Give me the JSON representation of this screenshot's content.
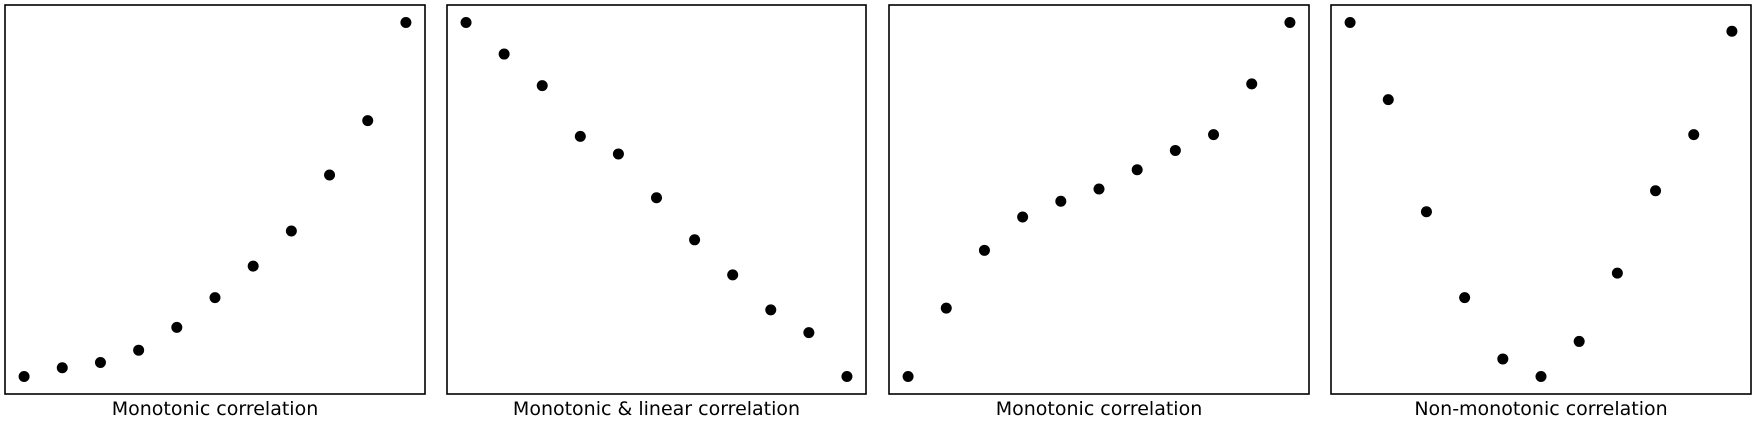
{
  "chart_data": [
    {
      "type": "scatter",
      "title": "",
      "xlabel": "Monotonic correlation",
      "ylabel": "",
      "x": [
        1,
        2,
        3,
        4,
        5,
        6,
        7,
        8,
        9,
        10,
        11
      ],
      "y": [
        0,
        2.5,
        4,
        7.5,
        14,
        22.5,
        31.5,
        41.5,
        57.5,
        73,
        101
      ],
      "xlim": [
        0.5,
        11.5
      ],
      "ylim": [
        -5,
        106
      ],
      "grid": false,
      "marker_color": "#000000"
    },
    {
      "type": "scatter",
      "title": "",
      "xlabel": "Monotonic & linear correlation",
      "ylabel": "",
      "x": [
        1,
        2,
        3,
        4,
        5,
        6,
        7,
        8,
        9,
        10,
        11
      ],
      "y": [
        101,
        92,
        83,
        68.5,
        63.5,
        51,
        39,
        29,
        19,
        12.5,
        0
      ],
      "xlim": [
        0.5,
        11.5
      ],
      "ylim": [
        -5,
        106
      ],
      "grid": false,
      "marker_color": "#000000"
    },
    {
      "type": "scatter",
      "title": "",
      "xlabel": "Monotonic correlation",
      "ylabel": "",
      "x": [
        1,
        2,
        3,
        4,
        5,
        6,
        7,
        8,
        9,
        10,
        11
      ],
      "y": [
        0,
        19.5,
        36,
        45.5,
        50,
        53.5,
        59,
        64.5,
        69,
        83.5,
        101
      ],
      "xlim": [
        0.5,
        11.5
      ],
      "ylim": [
        -5,
        106
      ],
      "grid": false,
      "marker_color": "#000000"
    },
    {
      "type": "scatter",
      "title": "",
      "xlabel": "Non-monotonic correlation",
      "ylabel": "",
      "x": [
        1,
        2,
        3,
        4,
        5,
        6,
        7,
        8,
        9,
        10,
        11
      ],
      "y": [
        101,
        79,
        47,
        22.5,
        5,
        0,
        10,
        29.5,
        53,
        69,
        98.5
      ],
      "xlim": [
        0.5,
        11.5
      ],
      "ylim": [
        -5,
        106
      ],
      "grid": false,
      "marker_color": "#000000"
    }
  ]
}
